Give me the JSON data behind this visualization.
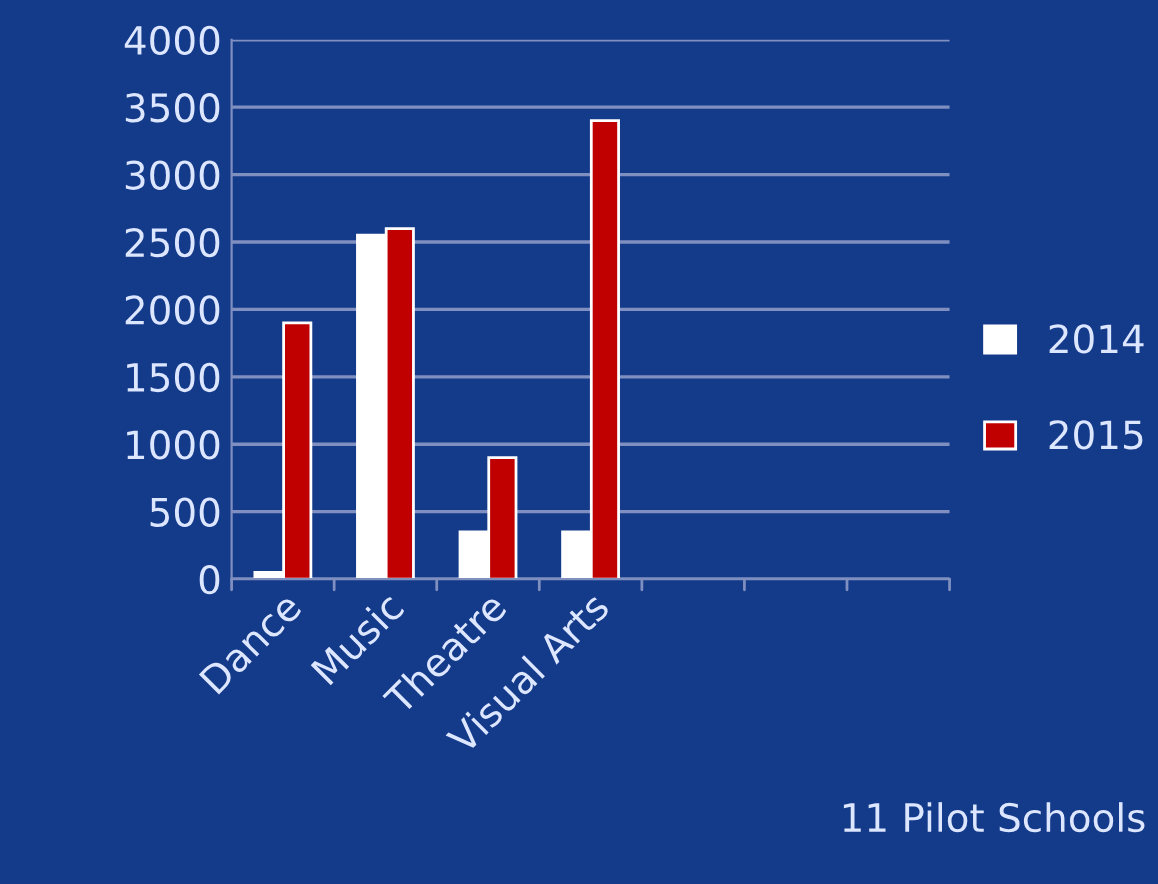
{
  "chart_data": {
    "type": "bar",
    "categories": [
      "Dance",
      "Music",
      "Theatre",
      "Visual Arts",
      null,
      null,
      null
    ],
    "series": [
      {
        "name": "2014",
        "color": "#ffffff",
        "values": [
          50,
          2550,
          350,
          350,
          null,
          null,
          null
        ]
      },
      {
        "name": "2015",
        "color": "#c00000",
        "values": [
          1900,
          2600,
          900,
          3400,
          null,
          null,
          null
        ]
      }
    ],
    "ylim": [
      0,
      4000
    ],
    "yticks": [
      0,
      500,
      1000,
      1500,
      2000,
      2500,
      3000,
      3500,
      4000
    ],
    "grid": "y",
    "legend": "right",
    "annotations": [
      "11 Pilot Schools"
    ]
  }
}
